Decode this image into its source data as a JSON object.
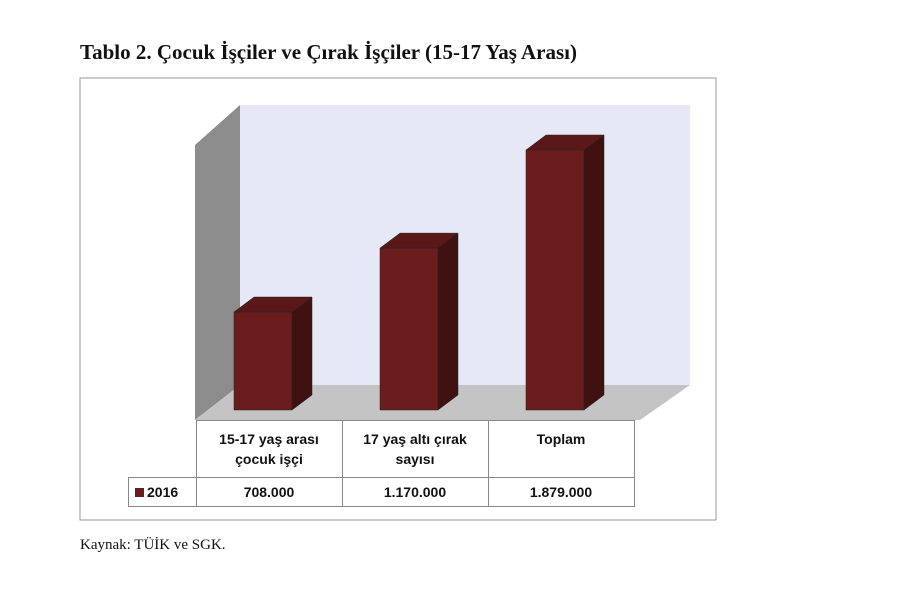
{
  "chart_data": {
    "type": "bar3d",
    "title": "Tablo 2. Çocuk İşçiler ve Çırak İşçiler (15-17 Yaş Arası)",
    "categories": [
      "15-17 yaş arası çocuk işçi",
      "17 yaş altı çırak sayısı",
      "Toplam"
    ],
    "series": [
      {
        "name": "2016",
        "color": "#6b1c1c",
        "values": [
          708000,
          1170000,
          1879000
        ],
        "value_labels": [
          "708.000",
          "1.170.000",
          "1.879.000"
        ]
      }
    ],
    "source": "Kaynak: TÜİK ve SGK."
  }
}
